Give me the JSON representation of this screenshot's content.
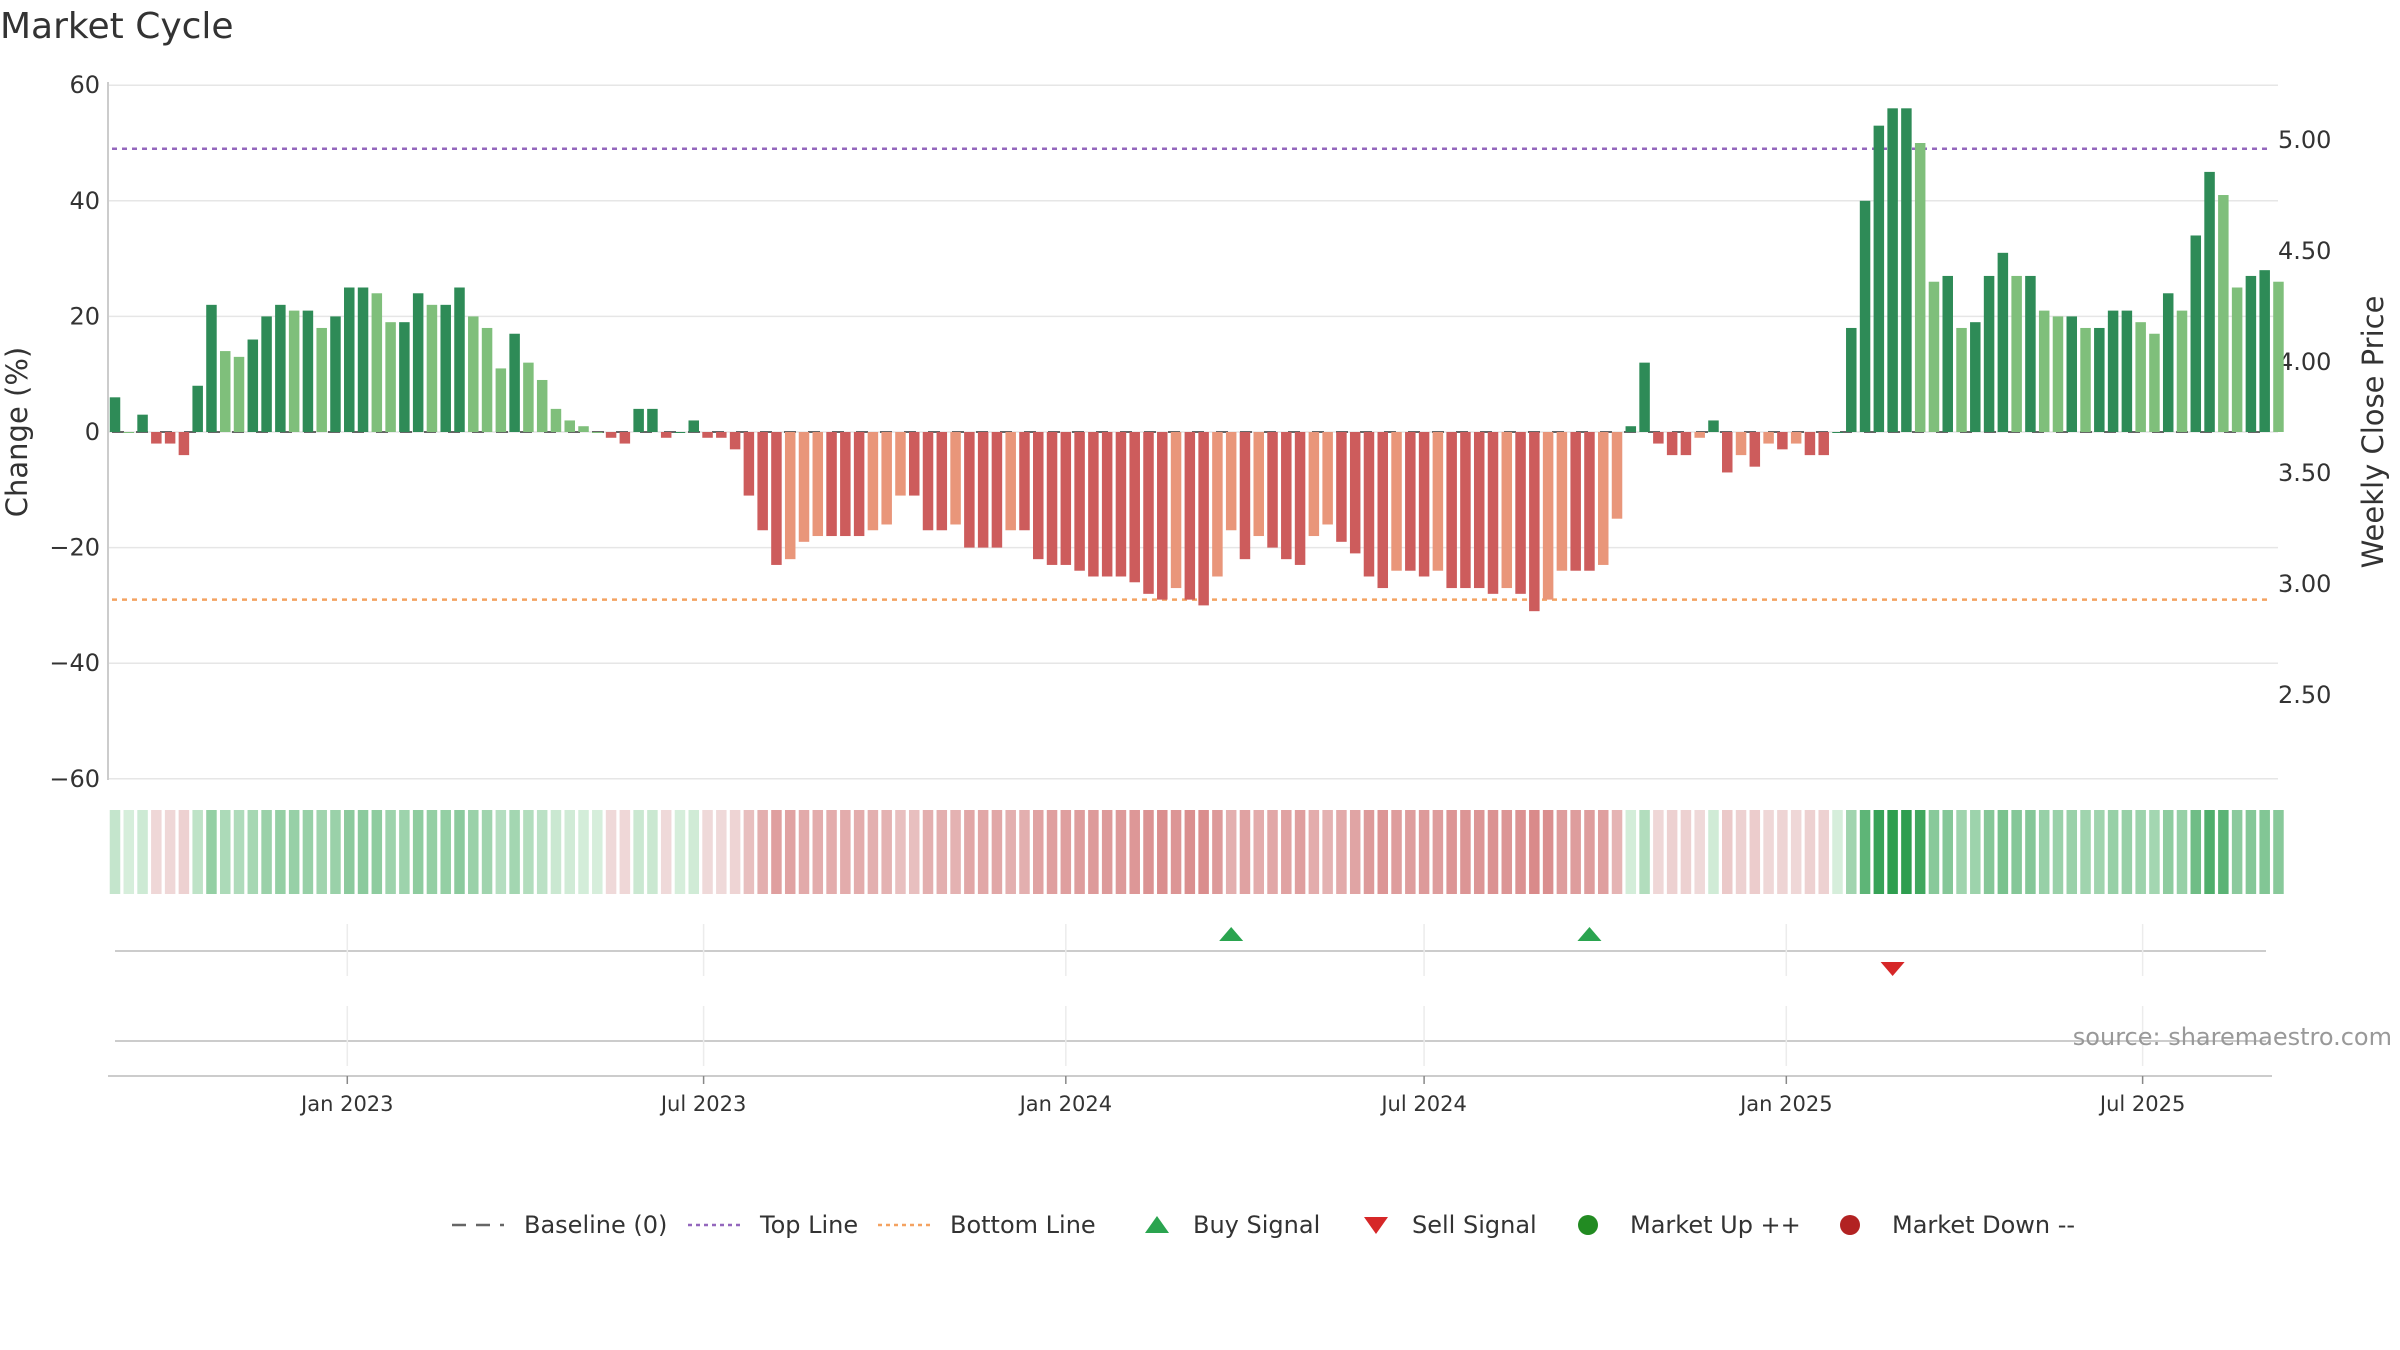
{
  "title": "Market Cycle",
  "source": "source: sharemaestro.com",
  "chart_data": {
    "type": "bar",
    "x_start": "2022-09-05",
    "x_step_days": 7,
    "values": [
      6,
      0,
      3,
      -2,
      -2,
      -4,
      8,
      22,
      14,
      13,
      16,
      20,
      22,
      21,
      21,
      18,
      20,
      25,
      25,
      24,
      19,
      19,
      24,
      22,
      22,
      25,
      20,
      18,
      11,
      17,
      12,
      9,
      4,
      2,
      1,
      0,
      -1,
      -2,
      4,
      4,
      -1,
      0,
      2,
      -1,
      -1,
      -3,
      -11,
      -17,
      -23,
      -22,
      -19,
      -18,
      -18,
      -18,
      -18,
      -17,
      -16,
      -11,
      -11,
      -17,
      -17,
      -16,
      -20,
      -20,
      -20,
      -17,
      -17,
      -22,
      -23,
      -23,
      -24,
      -25,
      -25,
      -25,
      -26,
      -28,
      -29,
      -27,
      -29,
      -30,
      -25,
      -17,
      -22,
      -18,
      -20,
      -22,
      -23,
      -18,
      -16,
      -19,
      -21,
      -25,
      -27,
      -24,
      -24,
      -25,
      -24,
      -27,
      -27,
      -27,
      -28,
      -27,
      -28,
      -31,
      -29,
      -24,
      -24,
      -24,
      -23,
      -15,
      1,
      12,
      -2,
      -4,
      -4,
      -1,
      2,
      -7,
      -4,
      -6,
      -2,
      -3,
      -2,
      -4,
      -4,
      0,
      18,
      40,
      53,
      56,
      56,
      50,
      26,
      27,
      18,
      19,
      27,
      31,
      27,
      27,
      21,
      20,
      20,
      18,
      18,
      21,
      21,
      19,
      17,
      24,
      21,
      34,
      45,
      41,
      25,
      27,
      28,
      26
    ],
    "y_left": {
      "label": "Change (%)",
      "range": [
        -60,
        60
      ],
      "ticks": [
        60,
        40,
        20,
        0,
        -20,
        -40,
        -60
      ]
    },
    "y_right": {
      "label": "Weekly Close Price",
      "ticks": [
        "5.00",
        "4.50",
        "4.00",
        "3.50",
        "3.00",
        "2.50"
      ]
    },
    "x_ticks": [
      "Jan 2023",
      "Jul 2023",
      "Jan 2024",
      "Jul 2024",
      "Jan 2025",
      "Jul 2025"
    ],
    "x_tick_dates": [
      "2023-01-01",
      "2023-07-01",
      "2024-01-01",
      "2024-07-01",
      "2025-01-01",
      "2025-07-01"
    ],
    "reference_lines": {
      "baseline": 0,
      "top": 49,
      "bottom": -29
    },
    "buy_signals": [
      "2024-03-25",
      "2024-09-23"
    ],
    "sell_signals": [
      "2025-02-24"
    ],
    "legend": [
      {
        "label": "Baseline (0)",
        "kind": "dash",
        "color": "#666666"
      },
      {
        "label": "Top Line",
        "kind": "dot",
        "color": "#9467bd"
      },
      {
        "label": "Bottom Line",
        "kind": "dot",
        "color": "#f4a261"
      },
      {
        "label": "Buy Signal",
        "kind": "tri-up",
        "color": "#2aa44f"
      },
      {
        "label": "Sell Signal",
        "kind": "tri-down",
        "color": "#d62728"
      },
      {
        "label": "Market Up ++",
        "kind": "circle",
        "color": "#228b22"
      },
      {
        "label": "Market Down --",
        "kind": "circle",
        "color": "#b22222"
      }
    ],
    "colors": {
      "up_strong": "#2e8b57",
      "up_weak": "#7fbf7b",
      "down_strong": "#cd5c5c",
      "down_weak": "#e9967a",
      "gridline": "#e6e6e6"
    },
    "grid": true,
    "legend_position": "bottom-center"
  }
}
